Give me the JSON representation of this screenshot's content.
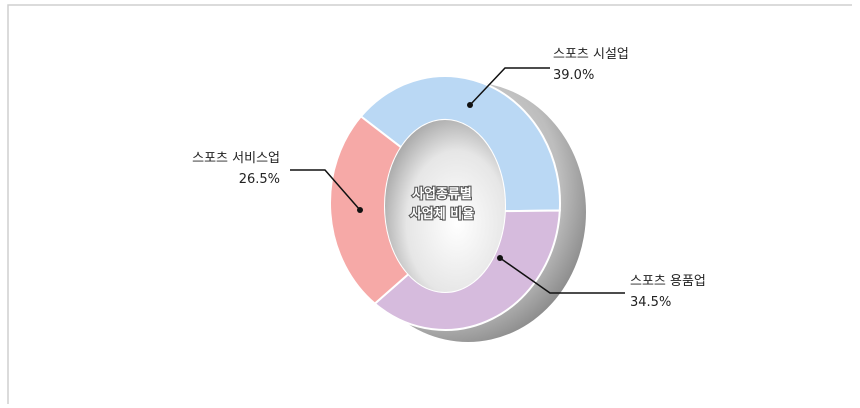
{
  "chart_data": {
    "type": "donut",
    "center_label": [
      "사업종류별",
      "사업체 비율"
    ],
    "categories": [
      "스포츠 시설업",
      "스포츠 용품업",
      "스포츠 서비스업"
    ],
    "values": [
      39.0,
      34.5,
      26.5
    ],
    "value_labels": [
      "39.0%",
      "34.5%",
      "26.5%"
    ],
    "colors": [
      "#bad8f4",
      "#d6bbdd",
      "#f6a9a7"
    ]
  }
}
